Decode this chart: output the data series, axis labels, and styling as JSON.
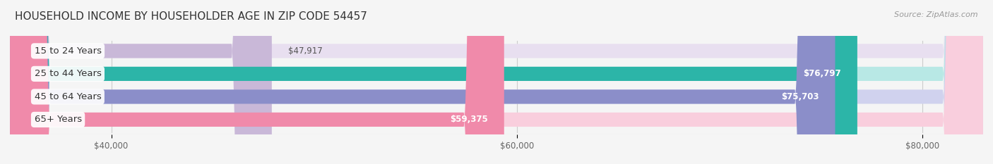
{
  "title": "HOUSEHOLD INCOME BY HOUSEHOLDER AGE IN ZIP CODE 54457",
  "source": "Source: ZipAtlas.com",
  "categories": [
    "15 to 24 Years",
    "25 to 44 Years",
    "45 to 64 Years",
    "65+ Years"
  ],
  "values": [
    47917,
    76797,
    75703,
    59375
  ],
  "bar_colors": [
    "#c9b8d8",
    "#2cb5a8",
    "#8b8ec9",
    "#f08aaa"
  ],
  "bar_bg_colors": [
    "#e8dff0",
    "#b8e8e5",
    "#d0d2ee",
    "#f9cedd"
  ],
  "value_labels": [
    "$47,917",
    "$76,797",
    "$75,703",
    "$59,375"
  ],
  "xlim_min": 35000,
  "xlim_max": 83000,
  "xticks": [
    40000,
    60000,
    80000
  ],
  "xtick_labels": [
    "$40,000",
    "$60,000",
    "$80,000"
  ],
  "background_color": "#f5f5f5",
  "bar_height": 0.62,
  "title_fontsize": 11,
  "label_fontsize": 9.5,
  "value_fontsize": 8.5,
  "source_fontsize": 8
}
